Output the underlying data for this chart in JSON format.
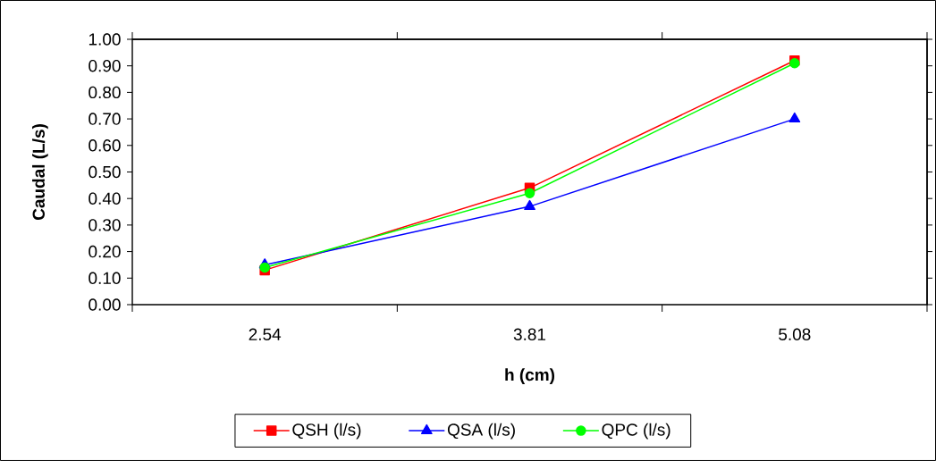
{
  "chart_data": {
    "type": "line",
    "xlabel": "h (cm)",
    "ylabel": "Caudal (L/s)",
    "categories": [
      "2.54",
      "3.81",
      "5.08"
    ],
    "ylim": [
      0,
      1
    ],
    "yticks": [
      {
        "value": 0,
        "label": "0.00"
      },
      {
        "value": 0.1,
        "label": "0.10"
      },
      {
        "value": 0.2,
        "label": "0.20"
      },
      {
        "value": 0.3,
        "label": "0.30"
      },
      {
        "value": 0.4,
        "label": "0.40"
      },
      {
        "value": 0.5,
        "label": "0.50"
      },
      {
        "value": 0.6,
        "label": "0.60"
      },
      {
        "value": 0.7,
        "label": "0.70"
      },
      {
        "value": 0.8,
        "label": "0.80"
      },
      {
        "value": 0.9,
        "label": "0.90"
      },
      {
        "value": 1,
        "label": "1.00"
      }
    ],
    "legend": "bottom",
    "grid": false,
    "series": [
      {
        "name": "QSH (l/s)",
        "color": "#ff0000",
        "marker": "square",
        "values": [
          0.13,
          0.44,
          0.92
        ]
      },
      {
        "name": "QSA (l/s)",
        "color": "#0000ff",
        "marker": "triangle",
        "values": [
          0.15,
          0.37,
          0.7
        ]
      },
      {
        "name": "QPC (l/s)",
        "color": "#00ff00",
        "marker": "circle",
        "values": [
          0.14,
          0.42,
          0.91
        ]
      }
    ]
  }
}
